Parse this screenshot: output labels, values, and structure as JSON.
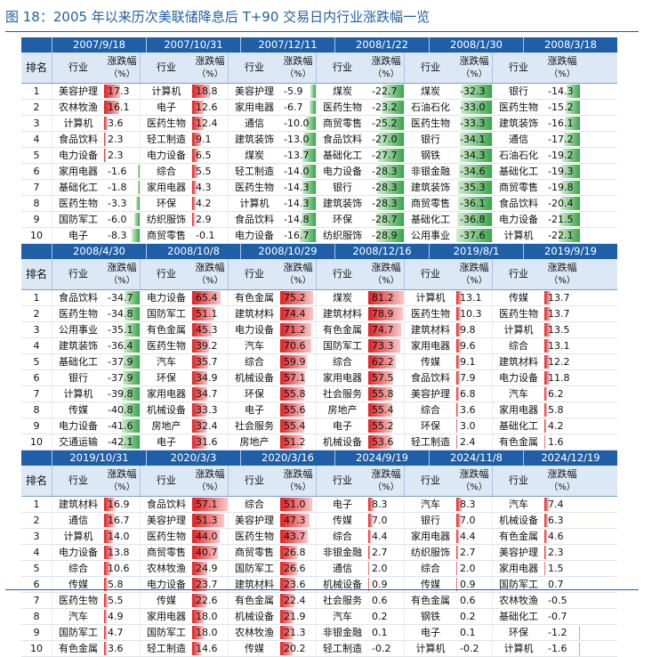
{
  "title": "图 18：2005 年以来历次美联储降息后 T+90 交易日内行业涨跌幅一览",
  "headers": {
    "rank": "排名",
    "industry": "行业",
    "change": "涨跌幅",
    "unit": "（%）"
  },
  "colors": {
    "title": "#1f5fa8",
    "header_bg": "#1f5fa8",
    "subheader_bg": "#dce8f5",
    "positive": "#e02020",
    "negative": "#3aa54a"
  },
  "ranks": [
    "1",
    "2",
    "3",
    "4",
    "5",
    "6",
    "7",
    "8",
    "9",
    "10"
  ],
  "blocks": [
    {
      "dates": [
        "2007/9/18",
        "2007/10/31",
        "2007/12/11",
        "2008/1/22",
        "2008/1/30",
        "2008/3/18"
      ],
      "columns": [
        {
          "industries": [
            "美容护理",
            "农林牧渔",
            "计算机",
            "食品饮料",
            "电力设备",
            "家用电器",
            "基础化工",
            "医药生物",
            "国防军工",
            "电子"
          ],
          "values": [
            "17.3",
            "16.1",
            "3.6",
            "2.3",
            "2.3",
            "-1.6",
            "-1.8",
            "-3.3",
            "-6.0",
            "-8.3"
          ]
        },
        {
          "industries": [
            "计算机",
            "电子",
            "医药生物",
            "轻工制造",
            "电力设备",
            "综合",
            "家用电器",
            "环保",
            "纺织服饰",
            "商贸零售"
          ],
          "values": [
            "18.8",
            "12.6",
            "12.4",
            "9.1",
            "6.5",
            "5.5",
            "4.3",
            "4.2",
            "2.9",
            "-0.1"
          ]
        },
        {
          "industries": [
            "美容护理",
            "家用电器",
            "通信",
            "建筑装饰",
            "煤炭",
            "轻工制造",
            "医药生物",
            "计算机",
            "食品饮料",
            "电力设备"
          ],
          "values": [
            "-5.9",
            "-6.7",
            "-10.0",
            "-13.0",
            "-13.7",
            "-14.0",
            "-14.3",
            "-14.3",
            "-14.8",
            "-16.7"
          ]
        },
        {
          "industries": [
            "煤炭",
            "医药生物",
            "商贸零售",
            "食品饮料",
            "基础化工",
            "电力设备",
            "银行",
            "建筑装饰",
            "环保",
            "纺织服饰"
          ],
          "values": [
            "-22.7",
            "-23.2",
            "-25.2",
            "-27.0",
            "-27.7",
            "-28.3",
            "-28.3",
            "-28.3",
            "-28.7",
            "-28.9"
          ]
        },
        {
          "industries": [
            "煤炭",
            "石油石化",
            "医药生物",
            "银行",
            "钢铁",
            "非银金融",
            "建筑装饰",
            "商贸零售",
            "基础化工",
            "公用事业"
          ],
          "values": [
            "-32.3",
            "-33.0",
            "-33.3",
            "-34.1",
            "-34.3",
            "-34.6",
            "-35.3",
            "-36.1",
            "-36.8",
            "-37.6"
          ]
        },
        {
          "industries": [
            "银行",
            "医药生物",
            "建筑装饰",
            "通信",
            "石油石化",
            "基础化工",
            "商贸零售",
            "食品饮料",
            "电力设备",
            "计算机"
          ],
          "values": [
            "-14.3",
            "-15.2",
            "-16.1",
            "-17.2",
            "-19.2",
            "-19.3",
            "-19.8",
            "-20.4",
            "-21.5",
            "-22.1"
          ]
        }
      ]
    },
    {
      "dates": [
        "2008/4/30",
        "2008/10/8",
        "2008/10/29",
        "2008/12/16",
        "2019/8/1",
        "2019/9/19"
      ],
      "columns": [
        {
          "industries": [
            "食品饮料",
            "医药生物",
            "公用事业",
            "建筑装饰",
            "基础化工",
            "银行",
            "计算机",
            "传媒",
            "电力设备",
            "交通运输"
          ],
          "values": [
            "-34.7",
            "-34.8",
            "-35.1",
            "-36.4",
            "-37.9",
            "-37.9",
            "-39.8",
            "-40.8",
            "-41.6",
            "-42.1"
          ]
        },
        {
          "industries": [
            "电力设备",
            "国防军工",
            "有色金属",
            "医药生物",
            "汽车",
            "环保",
            "家用电器",
            "机械设备",
            "房地产",
            "电子"
          ],
          "values": [
            "65.4",
            "51.1",
            "45.3",
            "39.2",
            "35.7",
            "34.9",
            "34.7",
            "33.3",
            "32.4",
            "31.6"
          ]
        },
        {
          "industries": [
            "有色金属",
            "建筑材料",
            "电力设备",
            "汽车",
            "综合",
            "机械设备",
            "环保",
            "电子",
            "社会服务",
            "房地产"
          ],
          "values": [
            "75.2",
            "74.4",
            "71.2",
            "70.6",
            "59.9",
            "57.1",
            "55.8",
            "55.6",
            "55.4",
            "51.2"
          ]
        },
        {
          "industries": [
            "煤炭",
            "建筑材料",
            "有色金属",
            "国防军工",
            "综合",
            "家用电器",
            "社会服务",
            "房地产",
            "电子",
            "机械设备"
          ],
          "values": [
            "81.2",
            "78.9",
            "74.7",
            "73.3",
            "62.2",
            "57.5",
            "55.8",
            "55.4",
            "55.2",
            "53.6"
          ]
        },
        {
          "industries": [
            "计算机",
            "医药生物",
            "建筑材料",
            "家用电器",
            "传媒",
            "食品饮料",
            "美容护理",
            "综合",
            "环保",
            "轻工制造"
          ],
          "values": [
            "13.1",
            "10.3",
            "9.8",
            "9.6",
            "9.1",
            "7.9",
            "6.8",
            "3.6",
            "3.0",
            "2.4"
          ]
        },
        {
          "industries": [
            "传媒",
            "医药生物",
            "计算机",
            "综合",
            "建筑材料",
            "电力设备",
            "汽车",
            "家用电器",
            "基础化工",
            "有色金属"
          ],
          "values": [
            "13.7",
            "13.7",
            "13.5",
            "13.1",
            "12.2",
            "11.8",
            "6.2",
            "5.8",
            "4.2",
            "1.6"
          ]
        }
      ]
    },
    {
      "dates": [
        "2019/10/31",
        "2020/3/3",
        "2020/3/16",
        "2024/9/19",
        "2024/11/8",
        "2024/12/19"
      ],
      "columns": [
        {
          "industries": [
            "建筑材料",
            "通信",
            "计算机",
            "电力设备",
            "综合",
            "传媒",
            "医药生物",
            "汽车",
            "国防军工",
            "有色金属"
          ],
          "values": [
            "16.9",
            "16.7",
            "14.0",
            "13.8",
            "10.6",
            "5.8",
            "5.5",
            "4.9",
            "4.7",
            "3.6"
          ]
        },
        {
          "industries": [
            "食品饮料",
            "美容护理",
            "医药生物",
            "商贸零售",
            "农林牧渔",
            "电力设备",
            "传媒",
            "家用电器",
            "国防军工",
            "轻工制造"
          ],
          "values": [
            "57.1",
            "51.3",
            "44.0",
            "40.7",
            "24.9",
            "23.7",
            "22.6",
            "18.0",
            "18.0",
            "14.6"
          ]
        },
        {
          "industries": [
            "综合",
            "美容护理",
            "医药生物",
            "商贸零售",
            "国防军工",
            "建筑材料",
            "有色金属",
            "机械设备",
            "农林牧渔",
            "传媒"
          ],
          "values": [
            "51.0",
            "47.3",
            "43.7",
            "26.8",
            "26.6",
            "23.6",
            "22.4",
            "21.9",
            "21.3",
            "20.2"
          ]
        },
        {
          "industries": [
            "电子",
            "传媒",
            "综合",
            "非银金融",
            "通信",
            "机械设备",
            "社会服务",
            "汽车",
            "非银金融",
            "轻工制造"
          ],
          "values": [
            "8.3",
            "7.0",
            "4.4",
            "2.7",
            "2.0",
            "0.9",
            "0.6",
            "0.2",
            "0.1",
            "-0.2"
          ]
        },
        {
          "industries": [
            "汽车",
            "银行",
            "家用电器",
            "纺织服饰",
            "综合",
            "传媒",
            "有色金属",
            "钢铁",
            "电子",
            "计算机"
          ],
          "values": [
            "8.3",
            "7.0",
            "4.4",
            "2.7",
            "2.0",
            "0.9",
            "0.6",
            "0.2",
            "0.1",
            "-0.2"
          ]
        },
        {
          "industries": [
            "汽车",
            "机械设备",
            "有色金属",
            "美容护理",
            "家用电器",
            "国防军工",
            "农林牧渔",
            "基础化工",
            "环保",
            "计算机"
          ],
          "values": [
            "7.4",
            "6.3",
            "4.6",
            "2.3",
            "1.5",
            "0.7",
            "-0.5",
            "-0.7",
            "-1.2",
            "-1.6"
          ]
        }
      ]
    }
  ]
}
